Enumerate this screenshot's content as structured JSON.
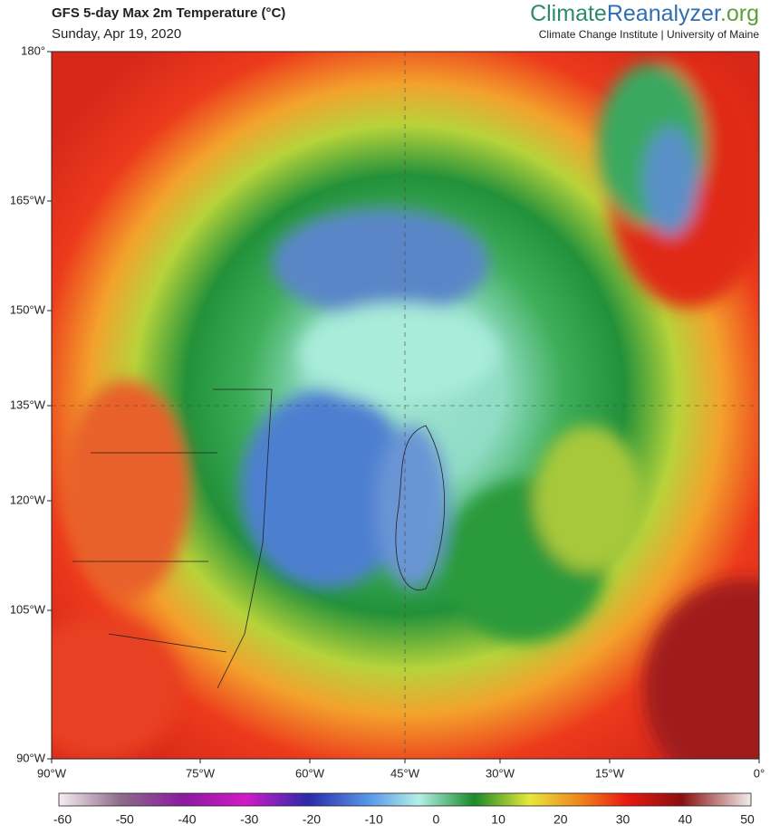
{
  "header": {
    "title": "GFS 5-day Max 2m Temperature (°C)",
    "date": "Sunday, Apr 19, 2020",
    "brand": [
      "Climate",
      "Reanalyzer",
      ".org"
    ],
    "subtitle": "Climate Change Institute | University of Maine"
  },
  "map": {
    "left_labels": [
      "180°",
      "165°W",
      "150°W",
      "135°W",
      "120°W",
      "105°W",
      "90°W"
    ],
    "bottom_labels": [
      "90°W",
      "75°W",
      "60°W",
      "45°W",
      "30°W",
      "15°W",
      "0°"
    ]
  },
  "colorbar": {
    "ticks": [
      -60,
      -50,
      -40,
      -30,
      -20,
      -10,
      0,
      10,
      20,
      30,
      40,
      50
    ]
  }
}
